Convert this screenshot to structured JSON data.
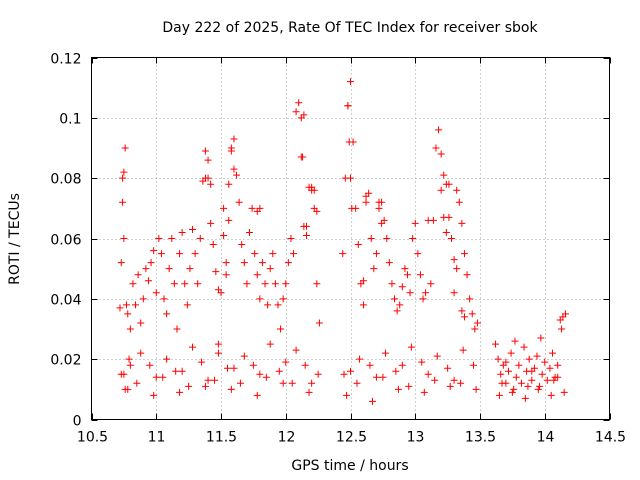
{
  "chart_data": {
    "type": "scatter",
    "title": "Day 222 of 2025, Rate Of TEC Index for receiver sbok",
    "xlabel": "GPS time / hours",
    "ylabel": "ROTI / TECUs",
    "xlim": [
      10.5,
      14.5
    ],
    "ylim": [
      0,
      0.12
    ],
    "xticks": [
      10.5,
      11,
      11.5,
      12,
      12.5,
      13,
      13.5,
      14,
      14.5
    ],
    "xtick_labels": [
      "10.5",
      "11",
      "11.5",
      "12",
      "12.5",
      "13",
      "13.5",
      "14",
      "14.5"
    ],
    "yticks": [
      0,
      0.02,
      0.04,
      0.06,
      0.08,
      0.1,
      0.12
    ],
    "ytick_labels": [
      "0",
      "0.02",
      "0.04",
      "0.06",
      "0.08",
      "0.1",
      "0.12"
    ],
    "grid": true,
    "marker": "plus",
    "marker_color": "#ff0000",
    "series": [
      {
        "x": [
          10.72,
          10.73,
          10.74,
          10.75,
          10.76,
          10.74,
          10.75,
          10.77,
          10.78,
          10.73,
          10.76,
          10.79,
          10.8,
          10.82,
          10.84,
          10.86,
          10.88,
          10.9,
          10.92,
          10.94,
          10.96,
          10.98,
          11.0,
          11.02,
          11.04,
          11.06,
          11.08,
          11.1,
          11.12,
          11.14,
          11.16,
          11.18,
          11.2,
          11.22,
          11.24,
          11.26,
          11.28,
          11.3,
          11.32,
          11.34,
          11.36,
          11.38,
          11.4,
          11.42,
          11.44,
          11.46,
          11.48,
          11.5,
          11.52,
          11.54,
          11.56,
          11.58,
          11.6,
          11.62,
          11.64,
          11.66,
          11.68,
          11.7,
          11.72,
          11.74,
          11.76,
          11.78,
          11.8,
          11.82,
          11.84,
          11.86,
          11.88,
          11.9,
          11.92,
          11.94,
          11.96,
          11.98,
          12.0,
          12.02,
          12.04,
          12.06,
          12.08,
          12.1,
          12.12,
          12.14,
          12.16,
          12.18,
          12.2,
          12.22,
          12.24,
          12.26,
          10.75,
          10.85,
          10.95,
          11.05,
          11.15,
          11.25,
          11.35,
          11.45,
          11.55,
          11.65,
          11.75,
          11.85,
          11.95,
          12.05,
          12.15,
          12.25,
          10.78,
          10.88,
          10.98,
          11.08,
          11.18,
          11.28,
          11.38,
          11.48,
          11.58,
          11.68,
          11.78,
          11.88,
          11.98,
          12.08,
          12.18,
          11.38,
          11.4,
          11.42,
          11.52,
          11.54,
          11.56,
          11.58,
          11.48,
          11.6,
          11.78,
          11.8,
          12.12,
          12.14,
          12.13,
          12.16,
          12.2,
          12.22,
          12.24,
          12.44,
          12.46,
          12.48,
          12.5,
          12.52,
          12.54,
          12.56,
          12.58,
          12.6,
          12.62,
          12.64,
          12.66,
          12.68,
          12.7,
          12.72,
          12.74,
          12.76,
          12.78,
          12.8,
          12.82,
          12.84,
          12.86,
          12.88,
          12.9,
          12.92,
          12.94,
          12.96,
          12.98,
          13.0,
          13.02,
          13.04,
          13.06,
          13.08,
          13.1,
          13.12,
          13.14,
          13.16,
          13.18,
          13.2,
          13.22,
          13.24,
          13.26,
          13.28,
          13.3,
          13.32,
          13.34,
          13.36,
          13.38,
          13.4,
          13.42,
          13.44,
          13.46,
          13.48,
          12.45,
          12.55,
          12.65,
          12.75,
          12.85,
          12.95,
          13.05,
          13.15,
          13.25,
          13.35,
          13.45,
          12.47,
          12.57,
          12.67,
          12.77,
          12.87,
          12.97,
          13.07,
          13.17,
          13.27,
          13.37,
          13.47,
          12.48,
          12.49,
          12.5,
          12.51,
          12.6,
          12.62,
          12.72,
          12.74,
          13.2,
          13.22,
          13.24,
          13.26,
          13.3,
          13.32,
          13.36,
          13.38,
          13.62,
          13.64,
          13.66,
          13.68,
          13.7,
          13.72,
          13.74,
          13.76,
          13.78,
          13.8,
          13.82,
          13.84,
          13.86,
          13.88,
          13.9,
          13.92,
          13.94,
          13.96,
          13.98,
          14.0,
          14.02,
          14.04,
          14.06,
          14.08,
          14.1,
          14.12,
          14.14,
          14.16,
          13.65,
          13.75,
          13.85,
          13.95,
          14.05,
          14.15,
          13.67,
          13.77,
          13.87,
          13.97,
          14.07,
          14.13,
          10.8,
          11.0,
          11.2,
          11.4,
          11.6,
          11.8,
          12.0,
          12.2,
          12.5,
          12.7,
          12.9,
          13.1,
          13.3,
          13.7,
          13.9,
          14.1
        ],
        "y": [
          0.037,
          0.052,
          0.072,
          0.082,
          0.09,
          0.08,
          0.06,
          0.038,
          0.035,
          0.015,
          0.01,
          0.02,
          0.03,
          0.045,
          0.038,
          0.048,
          0.032,
          0.04,
          0.05,
          0.046,
          0.052,
          0.056,
          0.042,
          0.06,
          0.055,
          0.04,
          0.035,
          0.05,
          0.06,
          0.045,
          0.03,
          0.055,
          0.062,
          0.045,
          0.038,
          0.05,
          0.063,
          0.055,
          0.045,
          0.06,
          0.079,
          0.089,
          0.08,
          0.065,
          0.058,
          0.049,
          0.043,
          0.042,
          0.061,
          0.048,
          0.078,
          0.089,
          0.093,
          0.081,
          0.072,
          0.058,
          0.052,
          0.045,
          0.062,
          0.07,
          0.055,
          0.048,
          0.04,
          0.052,
          0.045,
          0.038,
          0.05,
          0.055,
          0.045,
          0.038,
          0.03,
          0.04,
          0.045,
          0.052,
          0.06,
          0.055,
          0.102,
          0.105,
          0.087,
          0.064,
          0.061,
          0.077,
          0.076,
          0.07,
          0.045,
          0.032,
          0.015,
          0.012,
          0.018,
          0.014,
          0.016,
          0.011,
          0.019,
          0.013,
          0.017,
          0.012,
          0.018,
          0.014,
          0.016,
          0.012,
          0.018,
          0.015,
          0.01,
          0.022,
          0.008,
          0.02,
          0.009,
          0.024,
          0.011,
          0.022,
          0.01,
          0.021,
          0.008,
          0.025,
          0.012,
          0.023,
          0.009,
          0.08,
          0.086,
          0.078,
          0.07,
          0.052,
          0.066,
          0.09,
          0.025,
          0.083,
          0.069,
          0.07,
          0.1,
          0.101,
          0.087,
          0.064,
          0.077,
          0.076,
          0.069,
          0.055,
          0.08,
          0.104,
          0.112,
          0.092,
          0.07,
          0.058,
          0.045,
          0.038,
          0.074,
          0.075,
          0.06,
          0.05,
          0.055,
          0.07,
          0.072,
          0.066,
          0.06,
          0.052,
          0.045,
          0.04,
          0.036,
          0.038,
          0.044,
          0.05,
          0.048,
          0.042,
          0.06,
          0.065,
          0.055,
          0.048,
          0.04,
          0.042,
          0.066,
          0.045,
          0.066,
          0.09,
          0.096,
          0.088,
          0.081,
          0.078,
          0.067,
          0.06,
          0.053,
          0.076,
          0.072,
          0.065,
          0.055,
          0.048,
          0.04,
          0.035,
          0.03,
          0.032,
          0.015,
          0.012,
          0.018,
          0.014,
          0.016,
          0.011,
          0.019,
          0.013,
          0.017,
          0.012,
          0.018,
          0.008,
          0.02,
          0.006,
          0.022,
          0.01,
          0.024,
          0.009,
          0.021,
          0.011,
          0.023,
          0.01,
          0.104,
          0.092,
          0.08,
          0.07,
          0.046,
          0.072,
          0.072,
          0.065,
          0.076,
          0.067,
          0.062,
          0.078,
          0.042,
          0.05,
          0.036,
          0.034,
          0.025,
          0.02,
          0.015,
          0.018,
          0.012,
          0.016,
          0.022,
          0.01,
          0.014,
          0.018,
          0.012,
          0.024,
          0.016,
          0.02,
          0.013,
          0.017,
          0.021,
          0.011,
          0.015,
          0.019,
          0.013,
          0.017,
          0.022,
          0.014,
          0.018,
          0.033,
          0.034,
          0.035,
          0.008,
          0.009,
          0.007,
          0.01,
          0.008,
          0.009,
          0.012,
          0.026,
          0.011,
          0.027,
          0.013,
          0.03,
          0.018,
          0.014,
          0.016,
          0.013,
          0.017,
          0.015,
          0.019,
          0.012,
          0.016,
          0.014,
          0.018,
          0.015,
          0.013,
          0.019,
          0.016,
          0.014
        ]
      }
    ]
  }
}
